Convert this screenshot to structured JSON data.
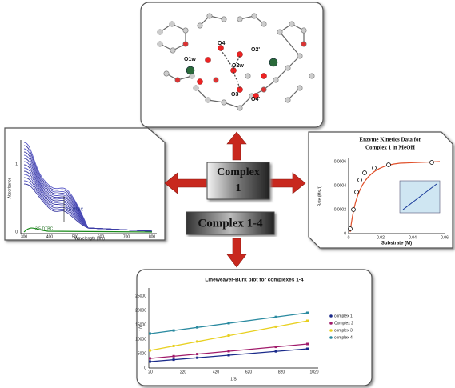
{
  "center": {
    "complex_1": [
      "Complex",
      "1"
    ],
    "complex_1_4": "Complex 1-4"
  },
  "crystal": {
    "atom_labels": [
      "O4",
      "O2'",
      "O1w",
      "O2w",
      "O3",
      "O4'"
    ]
  },
  "uv_vis": {
    "y_label": "Absorbance",
    "x_label": "Wavelength (nm)",
    "annotations": [
      "3,5-DTBC",
      "3,5-DTBC"
    ],
    "y_ticks": [
      "0",
      "1"
    ],
    "x_ticks": [
      "300",
      "400",
      "500",
      "600",
      "700",
      "800"
    ]
  },
  "kinetics": {
    "title_lines": [
      "Enzyme Kinetics Data for",
      "Complex 1 in MeOH"
    ],
    "y_label": "Rate (Ms-1)",
    "x_label": "Substrate (M)",
    "y_ticks": [
      "0",
      "0.0002",
      "0.0004",
      "0.0006"
    ],
    "x_ticks": [
      "0",
      "0.02",
      "0.04",
      "0.06"
    ]
  },
  "lineweaver": {
    "title": "Lineweaver-Burk plot for complexes 1-4",
    "y_label": "1/V",
    "x_label": "1/S",
    "y_ticks": [
      "0",
      "5000",
      "10000",
      "15000",
      "20000",
      "25000"
    ],
    "x_ticks": [
      "20",
      "220",
      "420",
      "620",
      "820",
      "1020"
    ],
    "legend": [
      "complex 1",
      "Complex 2",
      "complex 3",
      "complex 4"
    ]
  }
}
